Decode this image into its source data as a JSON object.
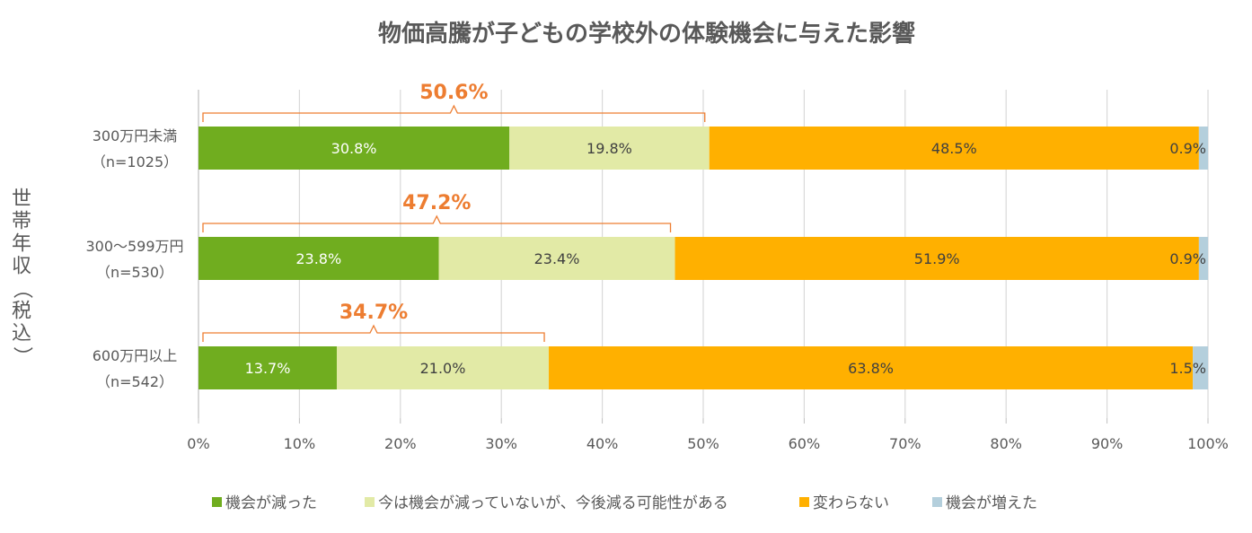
{
  "chart_data": {
    "type": "bar",
    "orientation": "horizontal",
    "stacked": true,
    "title": "物価高騰が子どもの学校外の体験機会に与えた影響",
    "ylabel": "世帯年収（税込）",
    "xlabel": "",
    "xlim": [
      0,
      100
    ],
    "x_ticks": [
      "0%",
      "10%",
      "20%",
      "30%",
      "40%",
      "50%",
      "60%",
      "70%",
      "80%",
      "90%",
      "100%"
    ],
    "gridlines": true,
    "legend_position": "bottom",
    "categories": [
      {
        "line1": "300万円未満",
        "line2": "（n=1025）"
      },
      {
        "line1": "300～599万円",
        "line2": "（n=530）"
      },
      {
        "line1": "600万円以上",
        "line2": "（n=542）"
      }
    ],
    "series": [
      {
        "name": "機会が減った",
        "color": "#70AD1F",
        "label_color": "#ffffff",
        "values": [
          30.8,
          23.8,
          13.7
        ],
        "labels": [
          "30.8%",
          "23.8%",
          "13.7%"
        ]
      },
      {
        "name": "今は機会が減っていないが、今後減る可能性がある",
        "color": "#E2EAA6",
        "label_color": "#404040",
        "values": [
          19.8,
          23.4,
          21.0
        ],
        "labels": [
          "19.8%",
          "23.4%",
          "21.0%"
        ]
      },
      {
        "name": "変わらない",
        "color": "#FFB000",
        "label_color": "#404040",
        "values": [
          48.5,
          51.9,
          63.8
        ],
        "labels": [
          "48.5%",
          "51.9%",
          "63.8%"
        ]
      },
      {
        "name": "機会が増えた",
        "color": "#B4CFDC",
        "label_color": "#404040",
        "values": [
          0.9,
          0.9,
          1.5
        ],
        "labels": [
          "0.9%",
          "0.9%",
          "1.5%"
        ]
      }
    ],
    "annotations": [
      {
        "category_index": 0,
        "value": 50.6,
        "text": "50.6%"
      },
      {
        "category_index": 1,
        "value": 47.2,
        "text": "47.2%"
      },
      {
        "category_index": 2,
        "value": 34.7,
        "text": "34.7%"
      }
    ],
    "annotation_color": "#ED7D31"
  }
}
